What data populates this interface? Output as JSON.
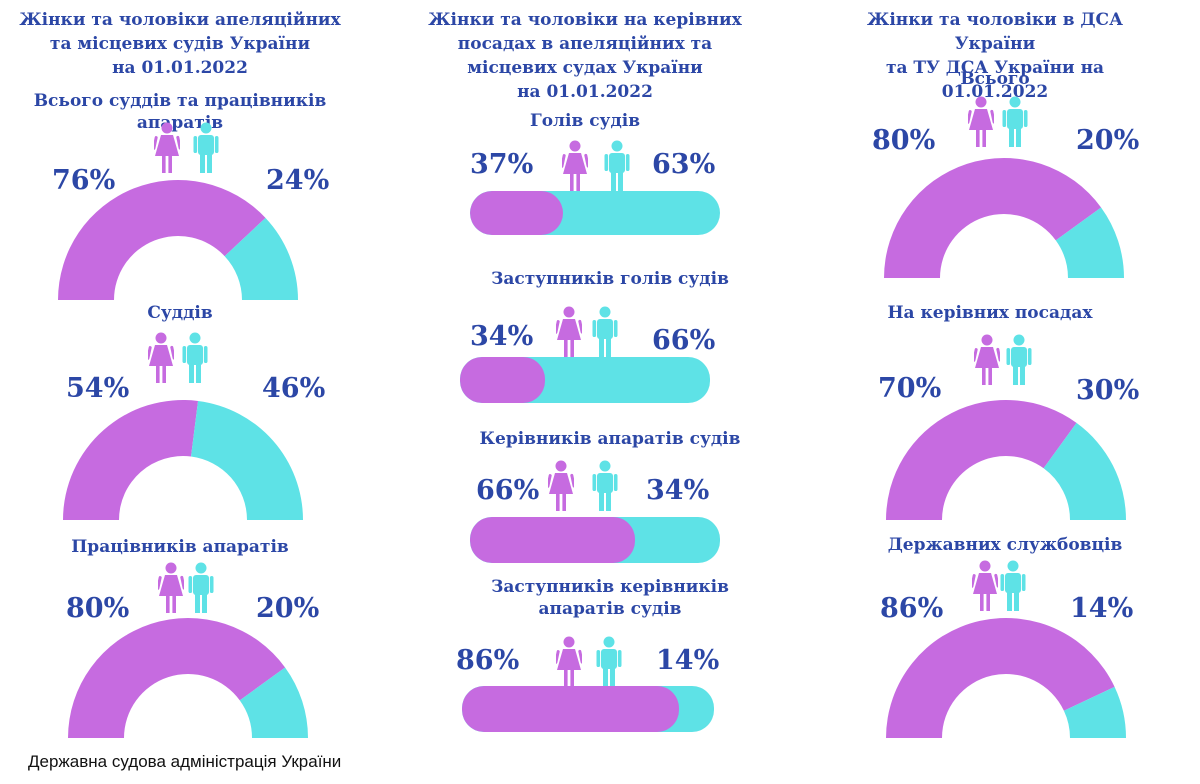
{
  "colors": {
    "women": "#c66be0",
    "men": "#5ee2e6",
    "text": "#2c47a6"
  },
  "icons": {
    "women": "woman-icon",
    "men": "man-icon"
  },
  "footer": "Державна судова адміністрація України",
  "chart_data": [
    {
      "type": "pie",
      "title": "Жінки та чоловіки апеляційних\nта місцевих судів України\nна 01.01.2022",
      "charts": [
        {
          "subtitle": "Всього суддів та працівників апаратів",
          "women": 76,
          "men": 24,
          "women_label": "76%",
          "men_label": "24%"
        },
        {
          "subtitle": "Суддів",
          "women": 54,
          "men": 46,
          "women_label": "54%",
          "men_label": "46%"
        },
        {
          "subtitle": "Працівників апаратів",
          "women": 80,
          "men": 20,
          "women_label": "80%",
          "men_label": "20%"
        }
      ]
    },
    {
      "type": "bar",
      "title": "Жінки та чоловіки на керівних\nпосадах  в  апеляційних та\nмісцевих судах України\nна 01.01.2022",
      "charts": [
        {
          "subtitle": "Голів судів",
          "women": 37,
          "men": 63,
          "women_label": "37%",
          "men_label": "63%"
        },
        {
          "subtitle": "Заступників голів судів",
          "women": 34,
          "men": 66,
          "women_label": "34%",
          "men_label": "66%"
        },
        {
          "subtitle": "Керівників апаратів судів",
          "women": 66,
          "men": 34,
          "women_label": "66%",
          "men_label": "34%"
        },
        {
          "subtitle": "Заступників керівників\nапаратів судів",
          "women": 86,
          "men": 14,
          "women_label": "86%",
          "men_label": "14%"
        }
      ]
    },
    {
      "type": "pie",
      "title": "Жінки та чоловіки в ДСА України\nта ТУ ДСА  України  на 01.01.2022",
      "charts": [
        {
          "subtitle": "Всього",
          "women": 80,
          "men": 20,
          "women_label": "80%",
          "men_label": "20%"
        },
        {
          "subtitle": "На керівних посадах",
          "women": 70,
          "men": 30,
          "women_label": "70%",
          "men_label": "30%"
        },
        {
          "subtitle": "Державних службовців",
          "women": 86,
          "men": 14,
          "women_label": "86%",
          "men_label": "14%"
        }
      ]
    }
  ]
}
